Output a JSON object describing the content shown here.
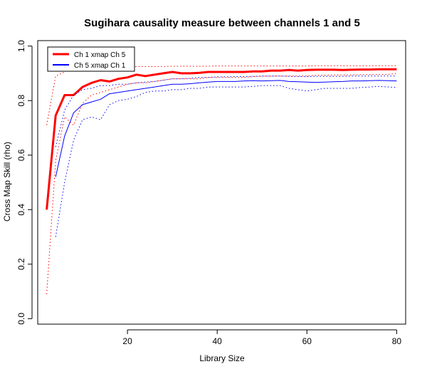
{
  "chart_data": {
    "type": "line",
    "title": "Sugihara causality measure between channels  1 and 5",
    "xlabel": "Library Size",
    "ylabel": "Cross Map Skill (rho)",
    "xlim": [
      0,
      82
    ],
    "ylim": [
      -0.02,
      1.02
    ],
    "xticks": [
      20,
      40,
      60,
      80
    ],
    "yticks": [
      0.0,
      0.2,
      0.4,
      0.6,
      0.8,
      1.0
    ],
    "ytick_labels": [
      "0.0",
      "0.2",
      "0.4",
      "0.6",
      "0.8",
      "1.0"
    ],
    "legend_position": "top-left",
    "grid": false,
    "series": [
      {
        "name": "Ch 1 xmap Ch 5",
        "color": "#ff0000",
        "style": "solid",
        "x": [
          2,
          4,
          6,
          8,
          10,
          12,
          14,
          16,
          18,
          20,
          22,
          24,
          26,
          28,
          30,
          32,
          34,
          36,
          38,
          40,
          42,
          44,
          46,
          48,
          50,
          52,
          54,
          56,
          58,
          60,
          62,
          64,
          66,
          68,
          70,
          72,
          74,
          76,
          78,
          80
        ],
        "values": [
          0.4,
          0.745,
          0.82,
          0.82,
          0.85,
          0.865,
          0.875,
          0.87,
          0.88,
          0.885,
          0.895,
          0.89,
          0.895,
          0.9,
          0.905,
          0.9,
          0.9,
          0.902,
          0.905,
          0.905,
          0.905,
          0.905,
          0.905,
          0.907,
          0.907,
          0.91,
          0.91,
          0.912,
          0.91,
          0.912,
          0.913,
          0.913,
          0.913,
          0.912,
          0.913,
          0.914,
          0.914,
          0.915,
          0.915,
          0.915
        ],
        "lower": [
          0.09,
          0.58,
          0.74,
          0.71,
          0.79,
          0.82,
          0.83,
          0.84,
          0.85,
          0.86,
          0.865,
          0.865,
          0.87,
          0.875,
          0.88,
          0.88,
          0.88,
          0.88,
          0.885,
          0.885,
          0.885,
          0.885,
          0.885,
          0.888,
          0.889,
          0.89,
          0.89,
          0.89,
          0.89,
          0.89,
          0.893,
          0.893,
          0.894,
          0.894,
          0.894,
          0.895,
          0.895,
          0.896,
          0.896,
          0.9
        ],
        "upper": [
          0.71,
          0.89,
          0.905,
          0.92,
          0.925,
          0.925,
          0.925,
          0.925,
          0.925,
          0.925,
          0.925,
          0.925,
          0.925,
          0.925,
          0.926,
          0.926,
          0.926,
          0.926,
          0.926,
          0.927,
          0.927,
          0.927,
          0.927,
          0.927,
          0.927,
          0.927,
          0.927,
          0.927,
          0.927,
          0.927,
          0.928,
          0.928,
          0.928,
          0.928,
          0.928,
          0.928,
          0.928,
          0.928,
          0.928,
          0.928
        ]
      },
      {
        "name": "Ch 5  xmap Ch 1",
        "color": "#0000ff",
        "style": "solid",
        "x": [
          4,
          6,
          8,
          10,
          12,
          14,
          16,
          18,
          20,
          22,
          24,
          26,
          28,
          30,
          32,
          34,
          36,
          38,
          40,
          42,
          44,
          46,
          48,
          50,
          52,
          54,
          56,
          58,
          60,
          62,
          64,
          66,
          68,
          70,
          72,
          74,
          76,
          78,
          80
        ],
        "values": [
          0.52,
          0.67,
          0.755,
          0.785,
          0.795,
          0.805,
          0.825,
          0.83,
          0.835,
          0.84,
          0.845,
          0.85,
          0.855,
          0.86,
          0.86,
          0.862,
          0.865,
          0.868,
          0.87,
          0.87,
          0.87,
          0.872,
          0.873,
          0.872,
          0.873,
          0.874,
          0.87,
          0.869,
          0.868,
          0.867,
          0.868,
          0.869,
          0.87,
          0.872,
          0.872,
          0.873,
          0.874,
          0.873,
          0.872
        ],
        "lower": [
          0.3,
          0.5,
          0.655,
          0.73,
          0.74,
          0.73,
          0.785,
          0.8,
          0.805,
          0.815,
          0.83,
          0.835,
          0.835,
          0.84,
          0.84,
          0.845,
          0.845,
          0.85,
          0.85,
          0.85,
          0.85,
          0.85,
          0.852,
          0.855,
          0.855,
          0.855,
          0.845,
          0.84,
          0.835,
          0.84,
          0.845,
          0.845,
          0.845,
          0.845,
          0.848,
          0.85,
          0.852,
          0.85,
          0.848
        ],
        "upper": [
          0.63,
          0.765,
          0.82,
          0.84,
          0.845,
          0.855,
          0.855,
          0.86,
          0.86,
          0.865,
          0.868,
          0.87,
          0.875,
          0.88,
          0.88,
          0.882,
          0.885,
          0.885,
          0.887,
          0.887,
          0.888,
          0.888,
          0.889,
          0.89,
          0.89,
          0.89,
          0.889,
          0.888,
          0.888,
          0.889,
          0.889,
          0.889,
          0.889,
          0.89,
          0.89,
          0.89,
          0.89,
          0.89,
          0.89
        ]
      }
    ]
  }
}
